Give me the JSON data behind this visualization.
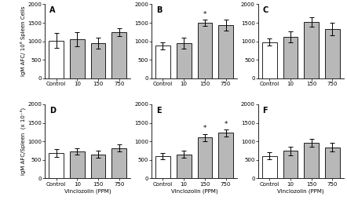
{
  "panels": [
    {
      "label": "A",
      "values": [
        1020,
        1050,
        950,
        1250
      ],
      "errors": [
        200,
        190,
        150,
        100
      ],
      "ylim": [
        0,
        2000
      ],
      "yticks": [
        0,
        500,
        1000,
        1500,
        2000
      ],
      "asterisks": [
        false,
        false,
        false,
        false
      ],
      "show_ylabel": true,
      "show_xlabel": false,
      "row": 0,
      "col": 0
    },
    {
      "label": "B",
      "values": [
        880,
        950,
        1500,
        1430
      ],
      "errors": [
        100,
        150,
        80,
        150
      ],
      "ylim": [
        0,
        2000
      ],
      "yticks": [
        0,
        500,
        1000,
        1500,
        2000
      ],
      "asterisks": [
        false,
        false,
        true,
        false
      ],
      "show_ylabel": false,
      "show_xlabel": false,
      "row": 0,
      "col": 1
    },
    {
      "label": "C",
      "values": [
        980,
        1120,
        1530,
        1340
      ],
      "errors": [
        100,
        150,
        130,
        170
      ],
      "ylim": [
        0,
        2000
      ],
      "yticks": [
        0,
        500,
        1000,
        1500,
        2000
      ],
      "asterisks": [
        false,
        false,
        false,
        false
      ],
      "show_ylabel": false,
      "show_xlabel": false,
      "row": 0,
      "col": 2
    },
    {
      "label": "D",
      "values": [
        690,
        730,
        650,
        820
      ],
      "errors": [
        100,
        90,
        100,
        90
      ],
      "ylim": [
        0,
        2000
      ],
      "yticks": [
        0,
        500,
        1000,
        1500,
        2000
      ],
      "asterisks": [
        false,
        false,
        false,
        false
      ],
      "show_ylabel": true,
      "show_xlabel": true,
      "row": 1,
      "col": 0
    },
    {
      "label": "E",
      "values": [
        600,
        650,
        1100,
        1230
      ],
      "errors": [
        80,
        100,
        100,
        90
      ],
      "ylim": [
        0,
        2000
      ],
      "yticks": [
        0,
        500,
        1000,
        1500,
        2000
      ],
      "asterisks": [
        false,
        false,
        true,
        true
      ],
      "show_ylabel": false,
      "show_xlabel": true,
      "row": 1,
      "col": 1
    },
    {
      "label": "F",
      "values": [
        610,
        740,
        960,
        840
      ],
      "errors": [
        90,
        120,
        110,
        120
      ],
      "ylim": [
        0,
        2000
      ],
      "yticks": [
        0,
        500,
        1000,
        1500,
        2000
      ],
      "asterisks": [
        false,
        false,
        false,
        false
      ],
      "show_ylabel": false,
      "show_xlabel": true,
      "row": 1,
      "col": 2
    }
  ],
  "categories": [
    "Control",
    "10",
    "150",
    "750"
  ],
  "bar_colors": [
    "white",
    "#b8b8b8",
    "#b8b8b8",
    "#b8b8b8"
  ],
  "bar_edgecolor": "black",
  "bar_width": 0.7,
  "figure_facecolor": "white",
  "capsize": 2,
  "ylabel_top": "IgM AFC/ 10⁶ Spleen Cells",
  "ylabel_bottom": "IgM AFC/Spleen  (x 10⁻³)"
}
